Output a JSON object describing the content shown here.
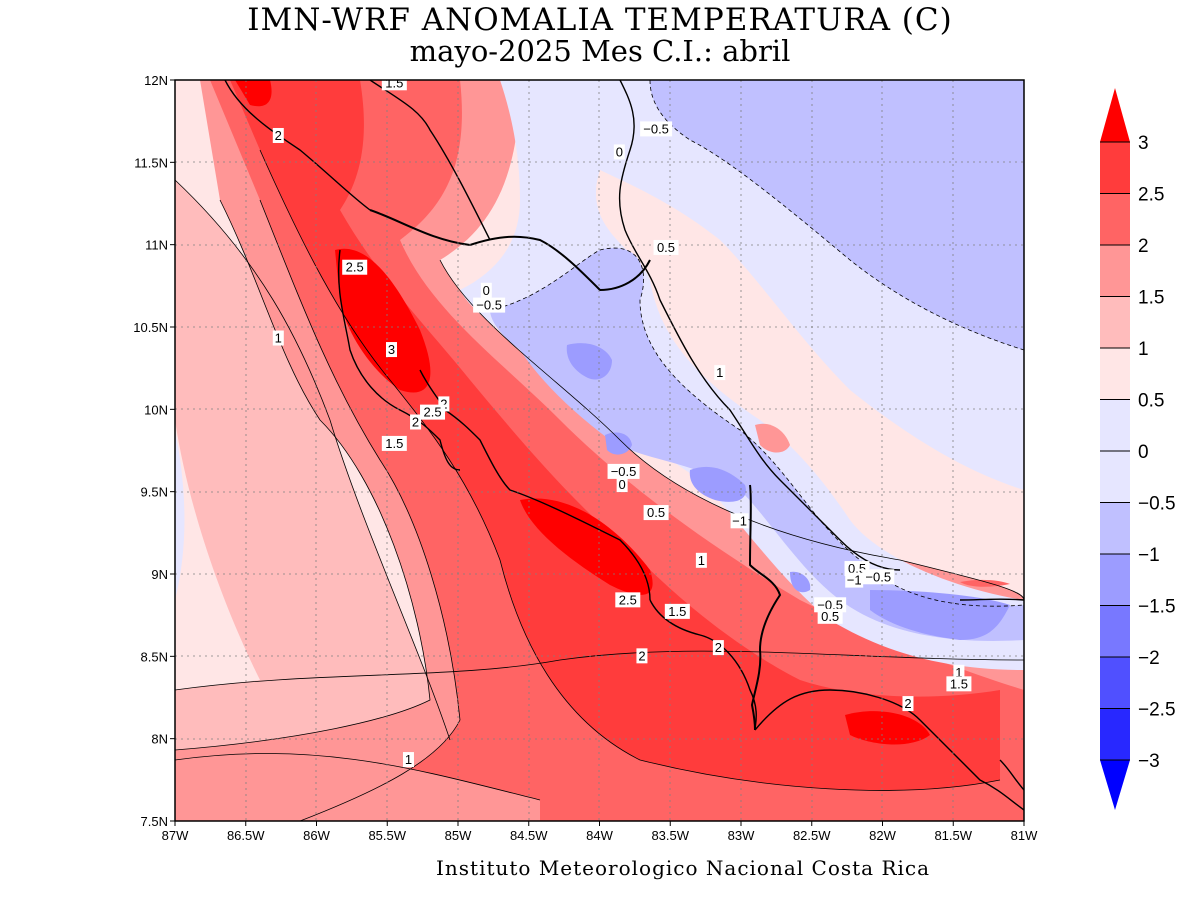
{
  "title": {
    "line1": "IMN-WRF  ANOMALIA TEMPERATURA (C)",
    "line2": "mayo-2025 Mes C.I.: abril"
  },
  "footer": "Instituto Meteorologico Nacional Costa Rica",
  "axes": {
    "x_ticks": [
      "87W",
      "86.5W",
      "86W",
      "85.5W",
      "85W",
      "84.5W",
      "84W",
      "83.5W",
      "83W",
      "82.5W",
      "82W",
      "81.5W",
      "81W"
    ],
    "y_ticks": [
      "12N",
      "11.5N",
      "11N",
      "10.5N",
      "10N",
      "9.5N",
      "9N",
      "8.5N",
      "8N",
      "7.5N"
    ],
    "lon_range": [
      -87,
      -81
    ],
    "lat_range": [
      7.5,
      12
    ],
    "grid": "dotted"
  },
  "colorbar": {
    "levels": [
      "3",
      "2.5",
      "2",
      "1.5",
      "1",
      "0.5",
      "0",
      "−0.5",
      "−1",
      "−1.5",
      "−2",
      "−2.5",
      "−3"
    ],
    "colors": [
      "#ff0000",
      "#ff3c3c",
      "#ff6464",
      "#ff9696",
      "#ffbcbc",
      "#ffe6e6",
      "#e6e6ff",
      "#c0c0ff",
      "#9c9cff",
      "#7878ff",
      "#5050ff",
      "#2828ff",
      "#0000ff"
    ],
    "placement": "right"
  },
  "contour_labels": [
    {
      "text": "1.5",
      "lon": -85.45,
      "lat": 11.98
    },
    {
      "text": "2",
      "lon": -86.27,
      "lat": 11.66
    },
    {
      "text": "−0.5",
      "lon": -83.6,
      "lat": 11.7
    },
    {
      "text": "0",
      "lon": -83.86,
      "lat": 11.56
    },
    {
      "text": "0.5",
      "lon": -83.53,
      "lat": 10.98
    },
    {
      "text": "2.5",
      "lon": -85.73,
      "lat": 10.86
    },
    {
      "text": "0",
      "lon": -84.8,
      "lat": 10.72
    },
    {
      "text": "−0.5",
      "lon": -84.78,
      "lat": 10.63
    },
    {
      "text": "1",
      "lon": -86.27,
      "lat": 10.43
    },
    {
      "text": "3",
      "lon": -85.47,
      "lat": 10.36
    },
    {
      "text": "1",
      "lon": -83.15,
      "lat": 10.22
    },
    {
      "text": "2",
      "lon": -85.1,
      "lat": 10.03
    },
    {
      "text": "2.5",
      "lon": -85.18,
      "lat": 9.98
    },
    {
      "text": "2",
      "lon": -85.3,
      "lat": 9.92
    },
    {
      "text": "1.5",
      "lon": -85.45,
      "lat": 9.79
    },
    {
      "text": "−0.5",
      "lon": -83.83,
      "lat": 9.62
    },
    {
      "text": "0",
      "lon": -83.84,
      "lat": 9.54
    },
    {
      "text": "0.5",
      "lon": -83.6,
      "lat": 9.37
    },
    {
      "text": "−1",
      "lon": -83.01,
      "lat": 9.32
    },
    {
      "text": "1",
      "lon": -83.28,
      "lat": 9.08
    },
    {
      "text": "0.5",
      "lon": -82.18,
      "lat": 9.03
    },
    {
      "text": "−0.5",
      "lon": -82.03,
      "lat": 8.98
    },
    {
      "text": "−1",
      "lon": -82.2,
      "lat": 8.96
    },
    {
      "text": "2.5",
      "lon": -83.8,
      "lat": 8.84
    },
    {
      "text": "−0.5",
      "lon": -82.37,
      "lat": 8.81
    },
    {
      "text": "1.5",
      "lon": -83.45,
      "lat": 8.77
    },
    {
      "text": "0.5",
      "lon": -82.37,
      "lat": 8.74
    },
    {
      "text": "2",
      "lon": -83.16,
      "lat": 8.55
    },
    {
      "text": "2",
      "lon": -83.7,
      "lat": 8.5
    },
    {
      "text": "1",
      "lon": -81.46,
      "lat": 8.4
    },
    {
      "text": "1.5",
      "lon": -81.46,
      "lat": 8.33
    },
    {
      "text": "2",
      "lon": -81.82,
      "lat": 8.21
    },
    {
      "text": "1",
      "lon": -85.35,
      "lat": 7.87
    }
  ]
}
